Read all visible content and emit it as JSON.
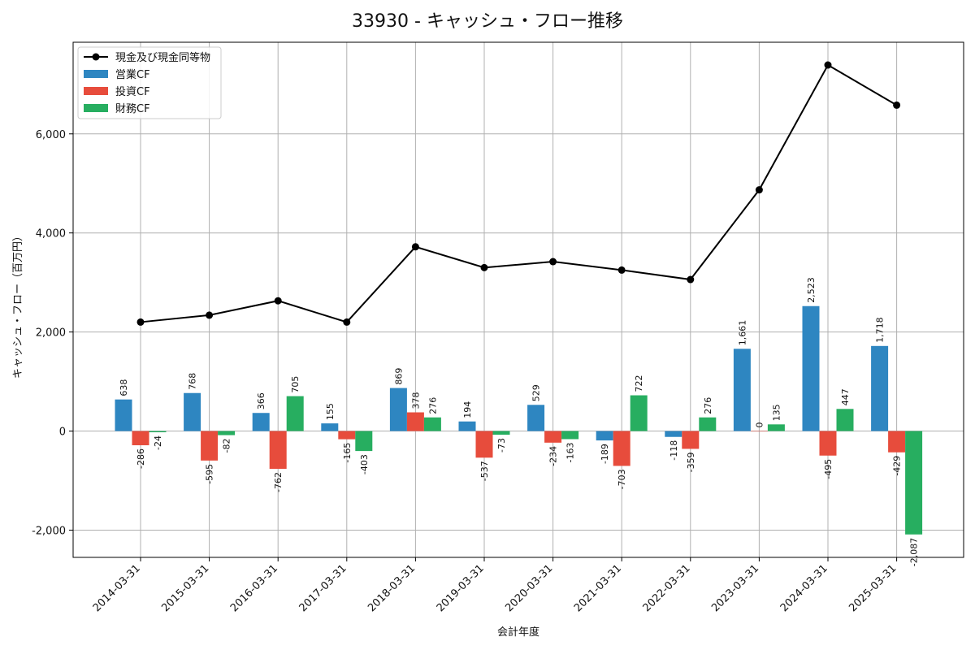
{
  "chart_data": {
    "type": "bar",
    "title": "33930 - キャッシュ・フロー推移",
    "xlabel": "会計年度",
    "ylabel": "キャッシュ・フロー（百万円）",
    "ylim": [
      -2550,
      7850
    ],
    "yticks": [
      -2000,
      0,
      2000,
      4000,
      6000
    ],
    "ytick_labels": [
      "-2,000",
      "0",
      "2,000",
      "4,000",
      "6,000"
    ],
    "grid": true,
    "legend_position": "top-left",
    "categories": [
      "2014-03-31",
      "2015-03-31",
      "2016-03-31",
      "2017-03-31",
      "2018-03-31",
      "2019-03-31",
      "2020-03-31",
      "2021-03-31",
      "2022-03-31",
      "2023-03-31",
      "2024-03-31",
      "2025-03-31"
    ],
    "series": [
      {
        "name": "営業CF",
        "kind": "bar",
        "color": "#2e86c1",
        "values": [
          638,
          768,
          366,
          155,
          869,
          194,
          529,
          -189,
          -118,
          1661,
          2523,
          1718
        ],
        "labels": [
          "638",
          "768",
          "366",
          "155",
          "869",
          "194",
          "529",
          "-189",
          "-118",
          "1,661",
          "2,523",
          "1,718"
        ]
      },
      {
        "name": "投資CF",
        "kind": "bar",
        "color": "#e74c3c",
        "values": [
          -286,
          -595,
          -762,
          -165,
          378,
          -537,
          -234,
          -703,
          -359,
          0,
          -495,
          -429
        ],
        "labels": [
          "-286",
          "-595",
          "-762",
          "-165",
          "378",
          "-537",
          "-234",
          "-703",
          "-359",
          "0",
          "-495",
          "-429"
        ]
      },
      {
        "name": "財務CF",
        "kind": "bar",
        "color": "#27ae60",
        "values": [
          -24,
          -82,
          705,
          -403,
          276,
          -73,
          -163,
          722,
          276,
          135,
          447,
          -2087
        ],
        "labels": [
          "-24",
          "-82",
          "705",
          "-403",
          "276",
          "-73",
          "-163",
          "722",
          "276",
          "135",
          "447",
          "-2,087"
        ]
      },
      {
        "name": "現金及び現金同等物",
        "kind": "line",
        "color": "#000000",
        "values": [
          2200,
          2340,
          2630,
          2200,
          3720,
          3300,
          3420,
          3250,
          3060,
          4870,
          7390,
          6580
        ]
      }
    ]
  }
}
